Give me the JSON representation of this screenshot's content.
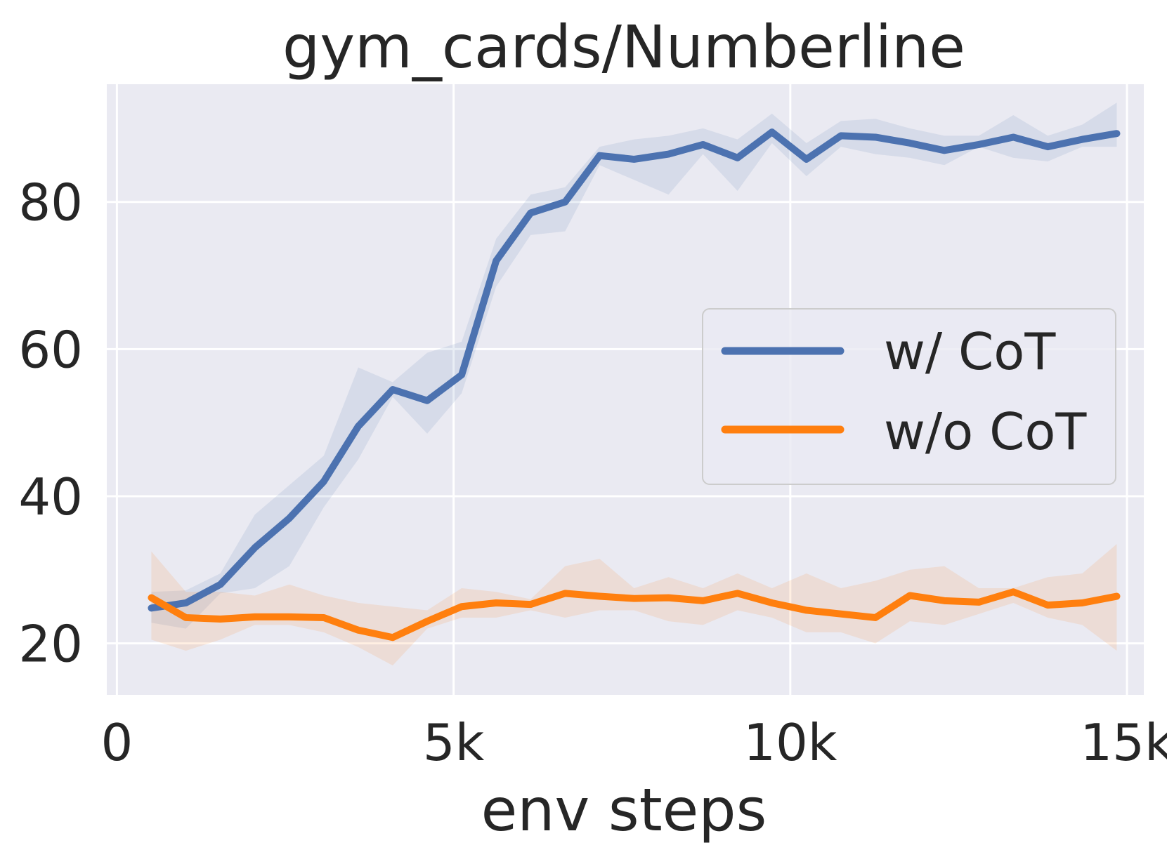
{
  "chart_data": {
    "type": "line",
    "title": "gym_cards/Numberline",
    "xlabel": "env steps",
    "ylabel": "",
    "xlim": [
      -150,
      15250
    ],
    "ylim": [
      13,
      96
    ],
    "x_ticks": [
      0,
      5000,
      10000,
      15000
    ],
    "x_tick_labels": [
      "0",
      "5k",
      "10k",
      "15k"
    ],
    "y_ticks": [
      20,
      40,
      60,
      80
    ],
    "y_tick_labels": [
      "20",
      "40",
      "60",
      "80"
    ],
    "grid": true,
    "background": "#EAEAF2",
    "legend_position": "center-right",
    "x": [
      512,
      1024,
      1536,
      2048,
      2560,
      3072,
      3584,
      4096,
      4608,
      5120,
      5632,
      6144,
      6656,
      7168,
      7680,
      8192,
      8704,
      9216,
      9728,
      10240,
      10752,
      11264,
      11776,
      12288,
      12800,
      13312,
      13824,
      14336,
      14848
    ],
    "series": [
      {
        "name": "w/ CoT",
        "color": "#4C72B0",
        "values": [
          24.8,
          25.5,
          28.0,
          33.0,
          37.0,
          42.0,
          49.5,
          54.5,
          53.0,
          56.5,
          72.0,
          78.5,
          80.0,
          86.3,
          85.8,
          86.5,
          87.8,
          86.0,
          89.5,
          85.8,
          89.0,
          88.8,
          88.0,
          87.0,
          87.8,
          88.8,
          87.5,
          88.5,
          89.3
        ],
        "band_low": [
          22.8,
          22.0,
          26.8,
          27.5,
          30.5,
          38.5,
          45.0,
          53.5,
          48.5,
          54.0,
          68.5,
          75.5,
          76.0,
          85.0,
          83.0,
          81.0,
          86.5,
          81.5,
          88.0,
          83.5,
          87.5,
          86.5,
          86.0,
          85.0,
          87.5,
          86.0,
          85.5,
          87.5,
          87.5
        ],
        "band_high": [
          27.0,
          27.2,
          29.5,
          37.5,
          41.5,
          45.5,
          57.5,
          55.5,
          59.5,
          61.0,
          75.0,
          81.0,
          82.0,
          87.5,
          88.5,
          89.0,
          90.0,
          88.5,
          92.0,
          88.0,
          91.0,
          91.3,
          90.0,
          89.0,
          89.0,
          91.8,
          89.0,
          90.5,
          93.5
        ]
      },
      {
        "name": "w/o CoT",
        "color": "#FF7F0E",
        "values": [
          26.2,
          23.5,
          23.3,
          23.6,
          23.6,
          23.5,
          21.8,
          20.8,
          23.0,
          25.0,
          25.5,
          25.3,
          26.8,
          26.4,
          26.1,
          26.2,
          25.8,
          26.8,
          25.5,
          24.5,
          24.0,
          23.5,
          26.5,
          25.8,
          25.6,
          27.0,
          25.2,
          25.5,
          26.4
        ],
        "band_low": [
          20.5,
          19.0,
          20.5,
          22.5,
          22.5,
          21.5,
          19.5,
          17.0,
          22.0,
          23.5,
          23.5,
          24.5,
          23.5,
          24.5,
          24.5,
          23.0,
          22.5,
          24.5,
          23.5,
          21.5,
          21.5,
          20.0,
          23.0,
          22.5,
          24.0,
          25.5,
          23.5,
          22.5,
          19.0
        ],
        "band_high": [
          32.5,
          27.0,
          27.0,
          26.5,
          28.0,
          26.5,
          25.5,
          25.0,
          24.5,
          27.5,
          27.0,
          26.0,
          30.5,
          31.5,
          27.5,
          29.0,
          27.5,
          29.5,
          27.5,
          29.5,
          27.5,
          28.5,
          30.0,
          30.5,
          27.5,
          27.5,
          29.0,
          29.5,
          33.5
        ]
      }
    ]
  }
}
